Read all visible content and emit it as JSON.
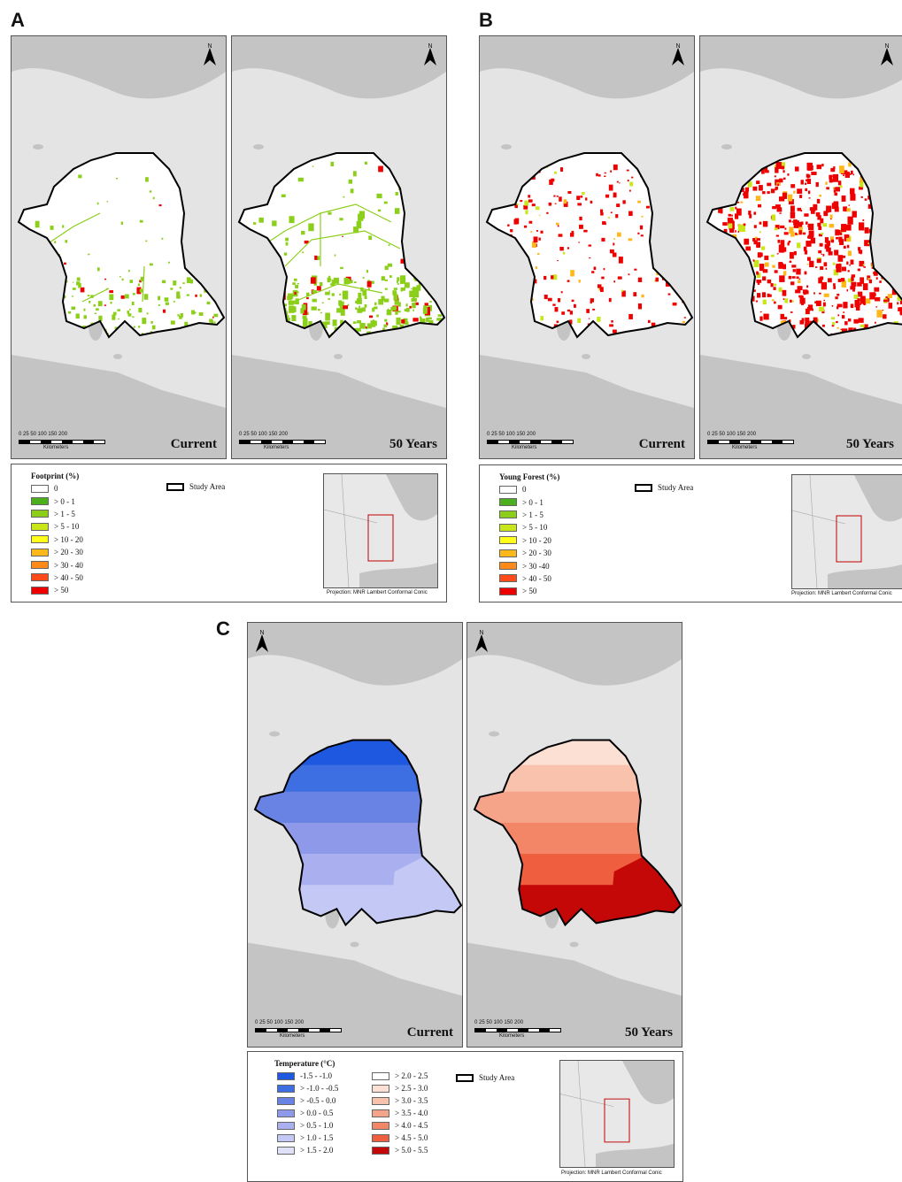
{
  "panels": [
    {
      "letter": "A",
      "maps": [
        {
          "caption": "Current",
          "fill": "none"
        },
        {
          "caption": "50 Years",
          "fill": "none"
        }
      ],
      "legend": {
        "title": "Footprint (%)",
        "items": [
          {
            "label": "0",
            "color": "#ffffff"
          },
          {
            "label": "> 0 - 1",
            "color": "#4caf1e"
          },
          {
            "label": "> 1 - 5",
            "color": "#8ccf1a"
          },
          {
            "label": "> 5 - 10",
            "color": "#c8e61a"
          },
          {
            "label": "> 10 - 20",
            "color": "#ffff1a"
          },
          {
            "label": "> 20 - 30",
            "color": "#ffb81a"
          },
          {
            "label": "> 30 - 40",
            "color": "#ff8a1a"
          },
          {
            "label": "> 40 - 50",
            "color": "#ff4a1a"
          },
          {
            "label": "> 50",
            "color": "#ee0000"
          }
        ],
        "study_area": "Study Area",
        "projection": "Projection: MNR Lambert Conformal Conic"
      }
    },
    {
      "letter": "B",
      "maps": [
        {
          "caption": "Current",
          "fill": "none"
        },
        {
          "caption": "50 Years",
          "fill": "none"
        }
      ],
      "legend": {
        "title": "Young Forest (%)",
        "items": [
          {
            "label": "0",
            "color": "#ffffff"
          },
          {
            "label": "> 0 - 1",
            "color": "#4caf1e"
          },
          {
            "label": "> 1 - 5",
            "color": "#8ccf1a"
          },
          {
            "label": "> 5 - 10",
            "color": "#c8e61a"
          },
          {
            "label": "> 10 - 20",
            "color": "#ffff1a"
          },
          {
            "label": "> 20 - 30",
            "color": "#ffb81a"
          },
          {
            "label": "> 30 -40",
            "color": "#ff8a1a"
          },
          {
            "label": "> 40 - 50",
            "color": "#ff4a1a"
          },
          {
            "label": "> 50",
            "color": "#ee0000"
          }
        ],
        "study_area": "Study Area",
        "projection": "Projection: MNR Lambert Conformal Conic"
      }
    },
    {
      "letter": "C",
      "maps": [
        {
          "caption": "Current",
          "fill": "blue"
        },
        {
          "caption": "50 Years",
          "fill": "red"
        }
      ],
      "legend": {
        "title": "Temperature (°C)",
        "items_left": [
          {
            "label": "-1.5 - -1.0",
            "color": "#1f58e0"
          },
          {
            "label": "> -1.0 - -0.5",
            "color": "#3d6ee2"
          },
          {
            "label": "> -0.5 - 0.0",
            "color": "#6883e4"
          },
          {
            "label": "> 0.0 - 0.5",
            "color": "#8e99ea"
          },
          {
            "label": "> 0.5 - 1.0",
            "color": "#aab0ef"
          },
          {
            "label": "> 1.0 - 1.5",
            "color": "#c4c8f4"
          },
          {
            "label": "> 1.5 - 2.0",
            "color": "#dfe1f8"
          }
        ],
        "items_right": [
          {
            "label": "> 2.0 - 2.5",
            "color": "#ffffff"
          },
          {
            "label": "> 2.5 - 3.0",
            "color": "#fde0d4"
          },
          {
            "label": "> 3.0 - 3.5",
            "color": "#f9c2ad"
          },
          {
            "label": "> 3.5 - 4.0",
            "color": "#f6a489"
          },
          {
            "label": "> 4.0 - 4.5",
            "color": "#f38667"
          },
          {
            "label": "> 4.5 - 5.0",
            "color": "#ef5f3f"
          },
          {
            "label": "> 5.0 - 5.5",
            "color": "#c40808"
          }
        ],
        "study_area": "Study Area",
        "projection": "Projection: MNR Lambert Conformal Conic"
      }
    }
  ],
  "scalebar": {
    "ticks": "0  25 50     100     150     200",
    "unit": "Kilometers"
  },
  "north_label": "N",
  "colors": {
    "land": "#e4e4e4",
    "water": "#c4c4c4",
    "outline": "#000000"
  }
}
